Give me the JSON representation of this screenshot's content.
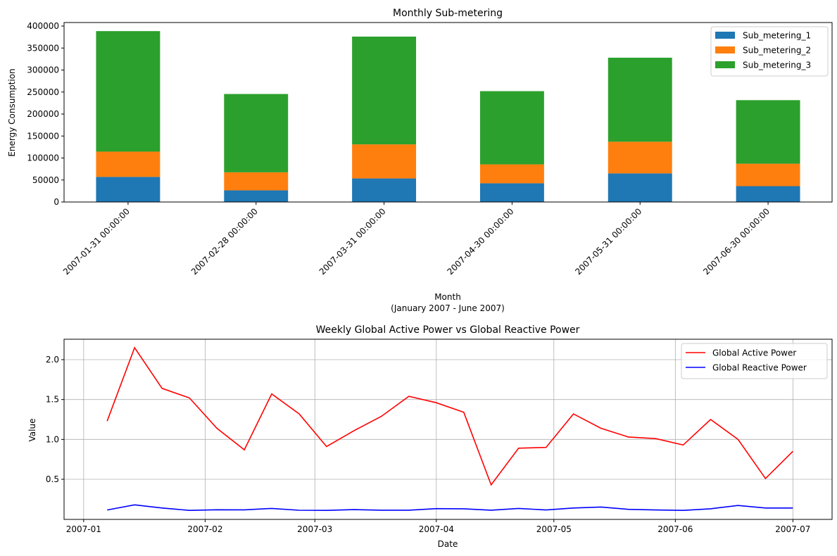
{
  "chart_data": [
    {
      "type": "bar",
      "stacked": true,
      "title": "Monthly Sub-metering",
      "xlabel": "Month",
      "xlabel_sub": "(January 2007 - June 2007)",
      "ylabel": "Energy Consumption",
      "ylim": [
        0,
        400000
      ],
      "yticks": [
        "0",
        "50000",
        "100000",
        "150000",
        "200000",
        "250000",
        "300000",
        "350000",
        "400000"
      ],
      "categories": [
        "2007-01-31 00:00:00",
        "2007-02-28 00:00:00",
        "2007-03-31 00:00:00",
        "2007-04-30 00:00:00",
        "2007-05-31 00:00:00",
        "2007-06-30 00:00:00"
      ],
      "legend_position": "top-right",
      "grid": false,
      "series": [
        {
          "name": "Sub_metering_1",
          "color": "#1f77b4",
          "values": [
            57000,
            26500,
            53500,
            42500,
            65000,
            36000
          ]
        },
        {
          "name": "Sub_metering_2",
          "color": "#ff7f0e",
          "values": [
            57500,
            41000,
            77500,
            43000,
            72000,
            51000
          ]
        },
        {
          "name": "Sub_metering_3",
          "color": "#2ca02c",
          "values": [
            274000,
            178000,
            245000,
            166500,
            191000,
            144500
          ]
        }
      ]
    },
    {
      "type": "line",
      "title": "Weekly Global Active Power vs Global Reactive Power",
      "xlabel": "Date",
      "ylabel": "Value",
      "grid": true,
      "legend_position": "top-right",
      "yticks": [
        "0.5",
        "1.0",
        "1.5",
        "2.0"
      ],
      "xticks": [
        "2007-01",
        "2007-02",
        "2007-03",
        "2007-04",
        "2007-05",
        "2007-06",
        "2007-07"
      ],
      "x": [
        "2007-01-07",
        "2007-01-14",
        "2007-01-21",
        "2007-01-28",
        "2007-02-04",
        "2007-02-11",
        "2007-02-18",
        "2007-02-25",
        "2007-03-04",
        "2007-03-11",
        "2007-03-18",
        "2007-03-25",
        "2007-04-01",
        "2007-04-08",
        "2007-04-15",
        "2007-04-22",
        "2007-04-29",
        "2007-05-06",
        "2007-05-13",
        "2007-05-20",
        "2007-05-27",
        "2007-06-03",
        "2007-06-10",
        "2007-06-17",
        "2007-06-24",
        "2007-07-01"
      ],
      "series": [
        {
          "name": "Global Active Power",
          "color": "#ff0000",
          "values": [
            1.23,
            2.15,
            1.64,
            1.52,
            1.14,
            0.87,
            1.57,
            1.32,
            0.91,
            1.11,
            1.29,
            1.54,
            1.46,
            1.34,
            0.43,
            0.89,
            0.9,
            1.32,
            1.14,
            1.03,
            1.01,
            0.93,
            1.25,
            1.0,
            0.51,
            0.85
          ]
        },
        {
          "name": "Global Reactive Power",
          "color": "#0000ff",
          "values": [
            0.115,
            0.18,
            0.14,
            0.11,
            0.118,
            0.117,
            0.135,
            0.112,
            0.11,
            0.12,
            0.113,
            0.113,
            0.132,
            0.13,
            0.113,
            0.135,
            0.115,
            0.14,
            0.152,
            0.123,
            0.115,
            0.11,
            0.13,
            0.172,
            0.14,
            0.14
          ]
        }
      ]
    }
  ]
}
